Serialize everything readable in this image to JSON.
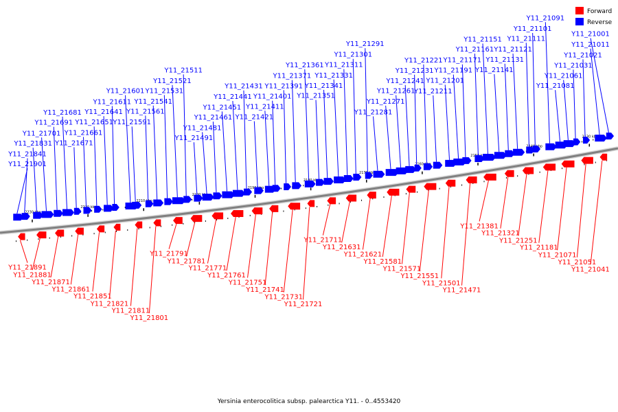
{
  "caption": "Yersinia enterocolitica subsp. palearctica Y11. - 0..4553420",
  "legend": [
    {
      "label": "Forward",
      "color": "#ff0000"
    },
    {
      "label": "Reverse",
      "color": "#0000ff"
    }
  ],
  "colors": {
    "forward": "#ff0000",
    "reverse": "#0000ff",
    "axis": "#808080"
  },
  "scale": {
    "start_kbp": 2232,
    "end_kbp": 2126,
    "tick_labels": [
      {
        "kbp": 2230,
        "label": "2230 kbp"
      },
      {
        "kbp": 2220,
        "label": "2220 kbp"
      },
      {
        "kbp": 2210,
        "label": "2210 kbp"
      },
      {
        "kbp": 2200,
        "label": "2200 kbp"
      },
      {
        "kbp": 2190,
        "label": "2190 kbp"
      },
      {
        "kbp": 2180,
        "label": "2180 kbp"
      },
      {
        "kbp": 2170,
        "label": "2170 kbp"
      },
      {
        "kbp": 2160,
        "label": "2160 kbp"
      },
      {
        "kbp": 2150,
        "label": "2150 kbp"
      },
      {
        "kbp": 2140,
        "label": "2140 kbp"
      },
      {
        "kbp": 2130,
        "label": "2130 kbp"
      }
    ]
  },
  "genes_reverse": [
    "Y11_21901",
    "Y11_21841",
    "Y11_21831",
    "Y11_21701",
    "Y11_21691",
    "Y11_21681",
    "Y11_21671",
    "Y11_21661",
    "Y11_21651",
    "Y11_21641",
    "Y11_21611",
    "Y11_21601",
    "Y11_21591",
    "Y11_21561",
    "Y11_21541",
    "Y11_21531",
    "Y11_21521",
    "Y11_21511",
    "Y11_21491",
    "Y11_21481",
    "Y11_21461",
    "Y11_21451",
    "Y11_21441",
    "Y11_21431",
    "Y11_21421",
    "Y11_21411",
    "Y11_21401",
    "Y11_21391",
    "Y11_21371",
    "Y11_21361",
    "Y11_21351",
    "Y11_21341",
    "Y11_21331",
    "Y11_21311",
    "Y11_21301",
    "Y11_21291",
    "Y11_21281",
    "Y11_21271",
    "Y11_21261",
    "Y11_21241",
    "Y11_21231",
    "Y11_21221",
    "Y11_21211",
    "Y11_21201",
    "Y11_21191",
    "Y11_21171",
    "Y11_21161",
    "Y11_21151",
    "Y11_21141",
    "Y11_21131",
    "Y11_21121",
    "Y11_21111",
    "Y11_21101",
    "Y11_21091",
    "Y11_21081",
    "Y11_21061",
    "Y11_21031",
    "Y11_21021",
    "Y11_21011",
    "Y11_21001"
  ],
  "genes_forward": [
    "Y11_21891",
    "Y11_21881",
    "Y11_21871",
    "Y11_21861",
    "Y11_21851",
    "Y11_21821",
    "Y11_21811",
    "Y11_21801",
    "Y11_21791",
    "Y11_21781",
    "Y11_21771",
    "Y11_21761",
    "Y11_21751",
    "Y11_21741",
    "Y11_21731",
    "Y11_21721",
    "Y11_21711",
    "Y11_21631",
    "Y11_21621",
    "Y11_21581",
    "Y11_21571",
    "Y11_21551",
    "Y11_21501",
    "Y11_21471",
    "Y11_21381",
    "Y11_21321",
    "Y11_21251",
    "Y11_21181",
    "Y11_21071",
    "Y11_21051",
    "Y11_21041"
  ]
}
